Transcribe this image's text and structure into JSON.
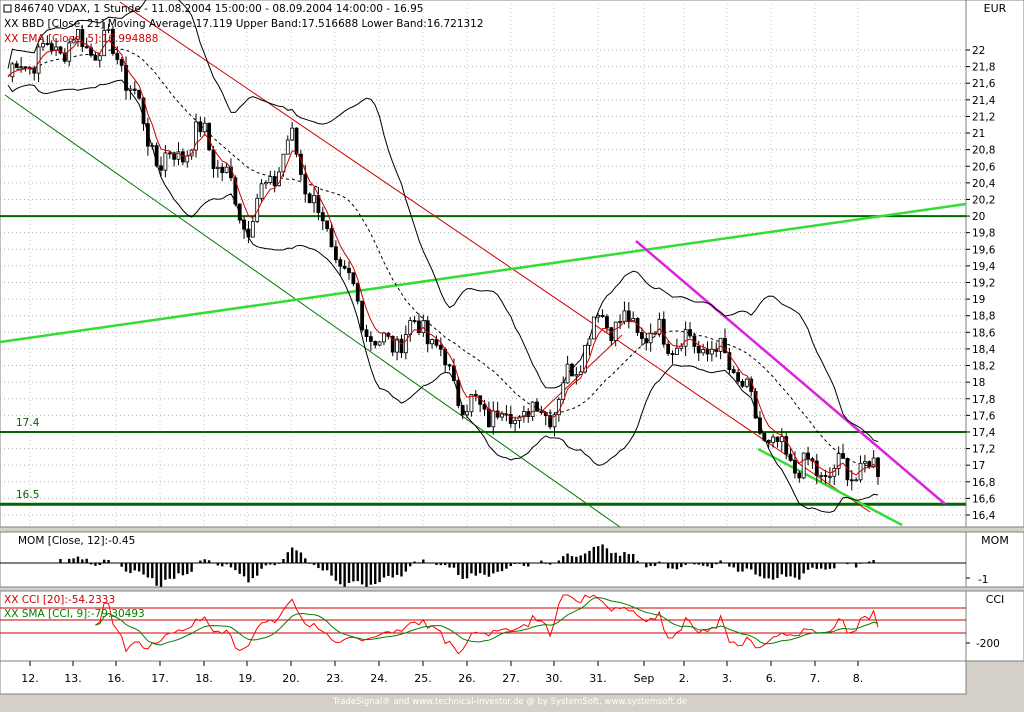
{
  "header": {
    "symbol_line": "846740 VDAX, 1 Stunde - 11.08.2004 15:00:00 - 08.09.2004 14:00:00 - 16.95",
    "bollinger_label": "XX BBD [Close, 21] Moving Average:17.119 Upper Band:17.516688 Lower Band:16.721312",
    "ema_label": "XX EMA [Close, 5]:16.994888"
  },
  "currency": "EUR",
  "footer": "TradeSignal® and www.technical-investor.de @ by SystemSoft, www.systemsoft.de",
  "panels": {
    "momentum": {
      "label": "MOM [Close, 12]:-0.45",
      "title": "MOM"
    },
    "cci": {
      "label1": "XX CCI [20]:-54.2333",
      "label2": "XX SMA [CCI, 9]:-79.30493",
      "title": "CCI"
    }
  },
  "colors": {
    "background": "#ffffff",
    "frame": "#d4d0c8",
    "candle_up": "#ffffff",
    "candle_down": "#000000",
    "ema": "#cc0000",
    "bollinger": "#000000",
    "channel_red": "#cc0000",
    "channel_green": "#007700",
    "trend_light_green": "#33dd33",
    "trend_magenta": "#dd22dd",
    "level_lines": "#006600",
    "cci_line": "#ff0000",
    "cci_sma": "#008000"
  },
  "chart_data": {
    "type": "line",
    "title": "846740 VDAX, 1 Stunde",
    "x_ticks": [
      "12.",
      "13.",
      "16.",
      "17.",
      "18.",
      "19.",
      "20.",
      "23.",
      "24.",
      "25.",
      "26.",
      "27.",
      "30.",
      "31.",
      "Sep",
      "2.",
      "3.",
      "6.",
      "7.",
      "8."
    ],
    "y_ticks": [
      22,
      21.8,
      21.6,
      21.4,
      21.2,
      21,
      20.8,
      20.6,
      20.4,
      20.2,
      20,
      19.8,
      19.6,
      19.4,
      19.2,
      19,
      18.8,
      18.6,
      18.4,
      18.2,
      18,
      17.8,
      17.6,
      17.4,
      17.2,
      17,
      16.8,
      16.6,
      16.4
    ],
    "ylim": [
      16.35,
      22.4
    ],
    "horizontal_levels": [
      {
        "value": 20.0,
        "label": ""
      },
      {
        "value": 17.4,
        "label": "17.4"
      },
      {
        "value": 16.53,
        "label": "16.5"
      }
    ],
    "close_path": [
      {
        "x": "12.",
        "y": 21.9
      },
      {
        "x": "13.",
        "y": 22.1
      },
      {
        "x": "16.",
        "y": 22.0
      },
      {
        "x": "17.",
        "y": 20.6
      },
      {
        "x": "18.",
        "y": 21.0
      },
      {
        "x": "19.",
        "y": 19.9
      },
      {
        "x": "20.",
        "y": 20.9
      },
      {
        "x": "23.",
        "y": 19.5
      },
      {
        "x": "24.",
        "y": 18.4
      },
      {
        "x": "25.",
        "y": 18.7
      },
      {
        "x": "26.",
        "y": 17.7
      },
      {
        "x": "27.",
        "y": 17.6
      },
      {
        "x": "30.",
        "y": 17.7
      },
      {
        "x": "31.",
        "y": 18.8
      },
      {
        "x": "Sep",
        "y": 18.6
      },
      {
        "x": "2.",
        "y": 18.5
      },
      {
        "x": "3.",
        "y": 18.3
      },
      {
        "x": "6.",
        "y": 17.2
      },
      {
        "x": "7.",
        "y": 16.9
      },
      {
        "x": "8.",
        "y": 16.95
      }
    ],
    "momentum_ticks": [
      "-1"
    ],
    "cci_ticks": [
      "-200"
    ]
  }
}
